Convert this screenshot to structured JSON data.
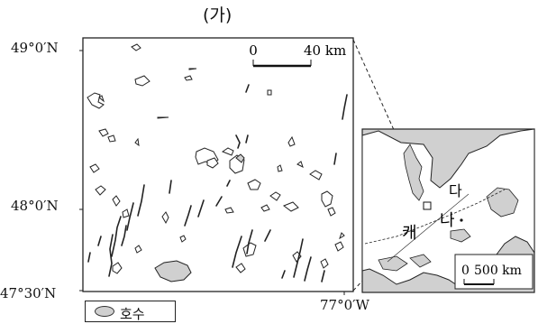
{
  "map": {
    "title": "(가)",
    "latitude_labels": [
      "49°0′N",
      "48°0′N",
      "47°30′N"
    ],
    "longitude_label": "77°0′W",
    "scale_main": {
      "zero": "0",
      "value": "40 km"
    },
    "scale_inset": {
      "zero": "0",
      "value": "500 km"
    },
    "inset_labels": {
      "region": "캐",
      "country_tail": "나",
      "mark": "다"
    },
    "legend": {
      "label": "호수"
    },
    "colors": {
      "lake": "#d0d0d0",
      "land": "#ffffff",
      "line": "#222222",
      "inset_water": "#d0d0d0"
    }
  }
}
